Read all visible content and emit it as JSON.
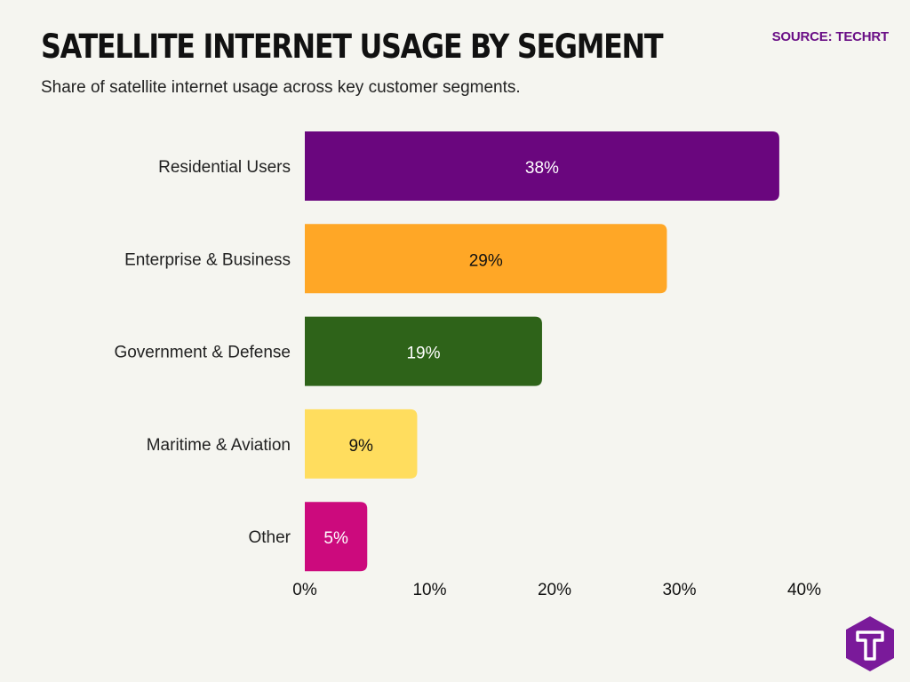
{
  "header": {
    "title": "SATELLITE INTERNET USAGE BY SEGMENT",
    "subtitle": "Share of satellite internet usage across key customer segments.",
    "source": "SOURCE: TECHRT"
  },
  "logo": {
    "icon": "techrt-logo-icon",
    "letter": "T",
    "color": "#7a1a9a"
  },
  "chart_data": {
    "type": "bar",
    "orientation": "horizontal",
    "title": "SATELLITE INTERNET USAGE BY SEGMENT",
    "subtitle": "Share of satellite internet usage across key customer segments.",
    "categories": [
      "Residential Users",
      "Enterprise & Business",
      "Government & Defense",
      "Maritime & Aviation",
      "Other"
    ],
    "values": [
      38,
      29,
      19,
      9,
      5
    ],
    "value_labels": [
      "38%",
      "29%",
      "19%",
      "9%",
      "5%"
    ],
    "colors": [
      "#6a067e",
      "#ffa726",
      "#2e6319",
      "#ffdd5e",
      "#cc0a7d"
    ],
    "label_colors": [
      "#ffffff",
      "#111111",
      "#ffffff",
      "#111111",
      "#ffffff"
    ],
    "xlim": [
      0,
      40
    ],
    "xticks": [
      0,
      10,
      20,
      30,
      40
    ],
    "xtick_labels": [
      "0%",
      "10%",
      "20%",
      "30%",
      "40%"
    ],
    "xlabel": "",
    "ylabel": "",
    "grid": false,
    "legend": "none"
  }
}
